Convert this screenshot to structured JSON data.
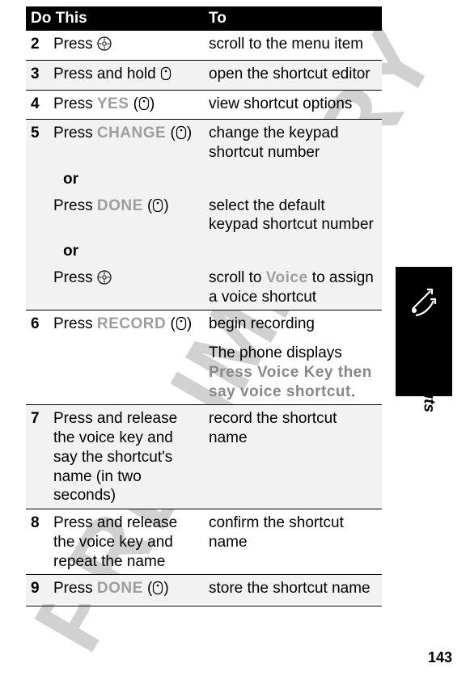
{
  "watermark_text": "PRELIMINARY",
  "page_number": "143",
  "side_label": "Shortcuts",
  "table": {
    "header_do": "Do This",
    "header_to": "To",
    "rows": [
      {
        "n": "2",
        "shaded": false,
        "line": false,
        "do": [
          {
            "t": "plain",
            "v": "Press "
          },
          {
            "t": "nav"
          }
        ],
        "to": [
          {
            "t": "plain",
            "v": "scroll to the menu item"
          }
        ]
      },
      {
        "n": "3",
        "shaded": true,
        "line": true,
        "do": [
          {
            "t": "plain",
            "v": "Press and hold "
          },
          {
            "t": "key"
          }
        ],
        "to": [
          {
            "t": "plain",
            "v": "open the shortcut editor"
          }
        ]
      },
      {
        "n": "4",
        "shaded": false,
        "line": true,
        "do": [
          {
            "t": "plain",
            "v": "Press "
          },
          {
            "t": "soft",
            "v": "YES"
          },
          {
            "t": "plain",
            "v": " ("
          },
          {
            "t": "key"
          },
          {
            "t": "plain",
            "v": ")"
          }
        ],
        "to": [
          {
            "t": "plain",
            "v": "view shortcut options"
          }
        ]
      },
      {
        "n": "5",
        "shaded": true,
        "line": true,
        "do": [
          {
            "t": "plain",
            "v": "Press "
          },
          {
            "t": "soft",
            "v": "CHANGE"
          },
          {
            "t": "plain",
            "v": " ("
          },
          {
            "t": "key"
          },
          {
            "t": "plain",
            "v": ")"
          }
        ],
        "to": [
          {
            "t": "plain",
            "v": "change the keypad shortcut number"
          }
        ]
      },
      {
        "n": "",
        "shaded": true,
        "line": false,
        "do": [
          {
            "t": "or",
            "v": "or"
          }
        ],
        "to": [
          {
            "t": "plain",
            "v": ""
          }
        ]
      },
      {
        "n": "",
        "shaded": true,
        "line": false,
        "do": [
          {
            "t": "plain",
            "v": "Press "
          },
          {
            "t": "soft",
            "v": "DONE"
          },
          {
            "t": "plain",
            "v": " ("
          },
          {
            "t": "key"
          },
          {
            "t": "plain",
            "v": ")"
          }
        ],
        "to": [
          {
            "t": "plain",
            "v": "select the default keypad shortcut number"
          }
        ]
      },
      {
        "n": "",
        "shaded": true,
        "line": false,
        "do": [
          {
            "t": "or",
            "v": "or"
          }
        ],
        "to": [
          {
            "t": "plain",
            "v": ""
          }
        ]
      },
      {
        "n": "",
        "shaded": true,
        "line": false,
        "do": [
          {
            "t": "plain",
            "v": "Press "
          },
          {
            "t": "nav"
          }
        ],
        "to": [
          {
            "t": "plain",
            "v": "scroll to "
          },
          {
            "t": "soft",
            "v": "Voice"
          },
          {
            "t": "plain",
            "v": " to assign a voice shortcut"
          }
        ]
      },
      {
        "n": "6",
        "shaded": false,
        "line": true,
        "do": [
          {
            "t": "plain",
            "v": "Press "
          },
          {
            "t": "soft",
            "v": "RECORD"
          },
          {
            "t": "plain",
            "v": " ("
          },
          {
            "t": "key"
          },
          {
            "t": "plain",
            "v": ")"
          }
        ],
        "to": [
          {
            "t": "plain",
            "v": "begin recording"
          }
        ]
      },
      {
        "n": "",
        "shaded": false,
        "line": false,
        "do": [
          {
            "t": "plain",
            "v": ""
          }
        ],
        "to": [
          {
            "t": "plain",
            "v": "The phone displays "
          },
          {
            "t": "softd",
            "v": "Press Voice Key then say voice shortcut"
          },
          {
            "t": "plain",
            "v": "."
          }
        ]
      },
      {
        "n": "7",
        "shaded": true,
        "line": true,
        "do": [
          {
            "t": "plain",
            "v": "Press and release the voice key and say the shortcut's name (in two seconds)"
          }
        ],
        "to": [
          {
            "t": "plain",
            "v": "record the shortcut name"
          }
        ]
      },
      {
        "n": "8",
        "shaded": false,
        "line": true,
        "do": [
          {
            "t": "plain",
            "v": "Press and release the voice key and repeat the name"
          }
        ],
        "to": [
          {
            "t": "plain",
            "v": "confirm the shortcut name"
          }
        ]
      },
      {
        "n": "9",
        "shaded": true,
        "line": true,
        "do": [
          {
            "t": "plain",
            "v": "Press "
          },
          {
            "t": "soft",
            "v": "DONE"
          },
          {
            "t": "plain",
            "v": " ("
          },
          {
            "t": "key"
          },
          {
            "t": "plain",
            "v": ")"
          }
        ],
        "to": [
          {
            "t": "plain",
            "v": "store the shortcut name"
          }
        ]
      }
    ]
  }
}
